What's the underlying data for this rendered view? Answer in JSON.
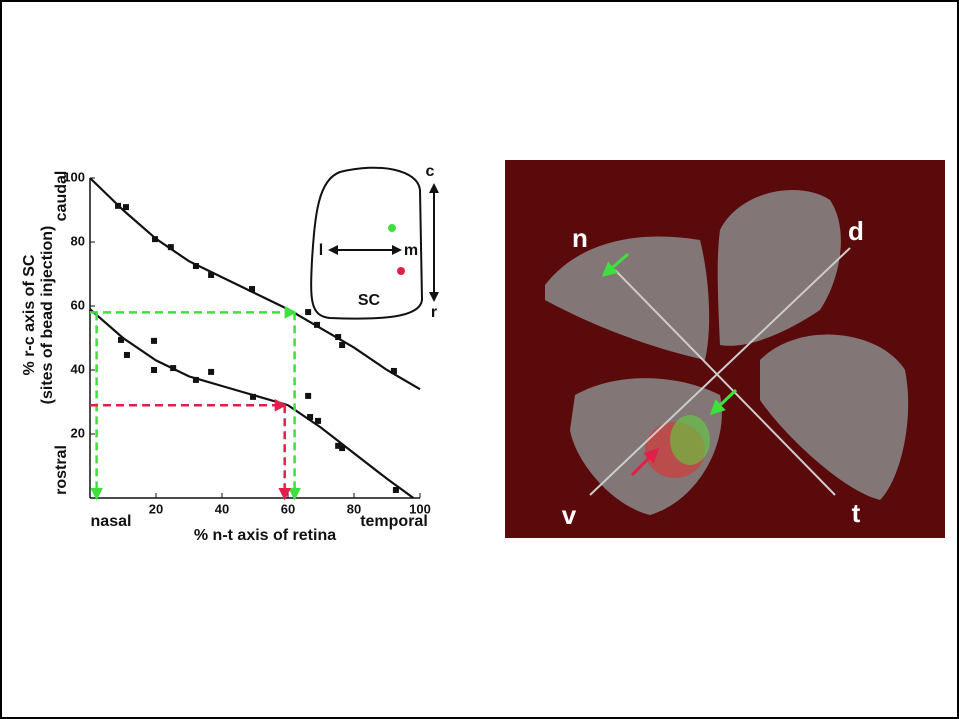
{
  "chart_data": {
    "type": "scatter",
    "xlabel": "% n-t axis of retina",
    "ylabel": "% r-c axis of SC",
    "ylabel2": "(sites of bead injection)",
    "annotations": {
      "caudal": "caudal",
      "rostral": "rostral",
      "nasal": "nasal",
      "temporal": "temporal"
    },
    "inset": {
      "c": "c",
      "r": "r",
      "l": "l",
      "m": "m",
      "sc": "SC"
    },
    "retina": {
      "n": "n",
      "d": "d",
      "v": "v",
      "t": "t"
    },
    "xlim": [
      0,
      100
    ],
    "ylim": [
      0,
      100
    ],
    "xticks": [
      20,
      40,
      60,
      80,
      100
    ],
    "yticks": [
      20,
      40,
      60,
      80,
      100
    ],
    "color": "#111111",
    "series": [
      {
        "x": [
          8.5,
          10.9,
          19.7,
          24.5,
          32.1,
          36.7,
          49.1,
          66.1,
          68.8,
          75.2,
          76.4,
          92.1
        ],
        "values": [
          91.3,
          90.9,
          80.9,
          78.4,
          72.5,
          69.7,
          65.3,
          58.1,
          54.1,
          50.3,
          47.8,
          39.7
        ]
      },
      {
        "x": [
          9.4,
          11.2,
          19.4,
          19.4,
          25.2,
          32.1,
          36.7,
          49.4,
          66.1,
          66.7,
          69.1,
          75.2,
          76.4,
          92.7
        ],
        "values": [
          49.4,
          44.7,
          49.1,
          40,
          40.6,
          36.9,
          39.4,
          31.6,
          31.9,
          25.3,
          24.1,
          16.3,
          15.6,
          2.5
        ]
      }
    ],
    "curves": [
      {
        "x": [
          0,
          5,
          10,
          20,
          30,
          40,
          50,
          60,
          70,
          80,
          90,
          100
        ],
        "values": [
          100,
          95,
          90,
          81,
          74,
          69,
          64,
          59,
          53,
          47,
          40,
          34
        ]
      },
      {
        "x": [
          0,
          10,
          20,
          30,
          40,
          50,
          60,
          70,
          80,
          90,
          98
        ],
        "values": [
          59,
          50,
          43,
          38,
          35,
          32,
          29,
          22,
          14,
          6,
          0
        ]
      }
    ],
    "guides": [
      {
        "color": "#3ee03e",
        "x": [
          0,
          62
        ],
        "values": [
          58,
          58
        ]
      },
      {
        "color": "#3ee03e",
        "x": [
          2,
          2
        ],
        "values": [
          58,
          0
        ]
      },
      {
        "color": "#3ee03e",
        "x": [
          62,
          62
        ],
        "values": [
          58,
          0
        ]
      },
      {
        "color": "#e0204a",
        "x": [
          0,
          59
        ],
        "values": [
          29,
          29
        ]
      },
      {
        "color": "#e0204a",
        "x": [
          59,
          59
        ],
        "values": [
          29,
          0
        ]
      }
    ]
  }
}
